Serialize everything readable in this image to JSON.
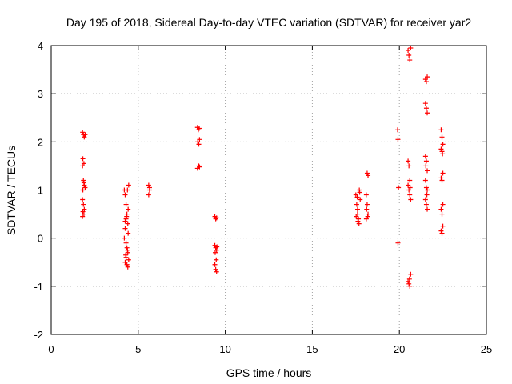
{
  "chart_data": {
    "type": "scatter",
    "title": "Day 195 of 2018, Sidereal Day-to-day VTEC variation (SDTVAR) for receiver yar2",
    "xlabel": "GPS time / hours",
    "ylabel": "SDTVAR / TECUs",
    "xlim": [
      0,
      25
    ],
    "ylim": [
      -2,
      4
    ],
    "xticks": [
      0,
      5,
      10,
      15,
      20,
      25
    ],
    "yticks": [
      -2,
      -1,
      0,
      1,
      2,
      3,
      4
    ],
    "grid": true,
    "marker": "plus",
    "color": "#ff0000",
    "series": [
      {
        "name": "SDTVAR",
        "points": [
          [
            1.8,
            2.2
          ],
          [
            1.85,
            2.15
          ],
          [
            1.9,
            2.1
          ],
          [
            1.95,
            2.15
          ],
          [
            1.82,
            1.65
          ],
          [
            1.88,
            1.55
          ],
          [
            1.8,
            1.5
          ],
          [
            1.85,
            1.2
          ],
          [
            1.9,
            1.1
          ],
          [
            1.82,
            1.0
          ],
          [
            1.88,
            1.15
          ],
          [
            1.95,
            1.05
          ],
          [
            1.8,
            0.8
          ],
          [
            1.85,
            0.7
          ],
          [
            1.9,
            0.6
          ],
          [
            1.82,
            0.55
          ],
          [
            1.88,
            0.5
          ],
          [
            1.8,
            0.45
          ],
          [
            4.2,
            1.0
          ],
          [
            4.25,
            0.9
          ],
          [
            4.3,
            0.7
          ],
          [
            4.35,
            0.5
          ],
          [
            4.4,
            0.3
          ],
          [
            4.45,
            1.1
          ],
          [
            4.38,
            1.0
          ],
          [
            4.42,
            0.6
          ],
          [
            4.3,
            0.4
          ],
          [
            4.25,
            0.2
          ],
          [
            4.2,
            0.0
          ],
          [
            4.3,
            -0.1
          ],
          [
            4.35,
            -0.2
          ],
          [
            4.4,
            -0.3
          ],
          [
            4.3,
            -0.4
          ],
          [
            4.25,
            -0.5
          ],
          [
            4.35,
            -0.55
          ],
          [
            4.4,
            -0.6
          ],
          [
            4.45,
            -0.45
          ],
          [
            4.28,
            -0.35
          ],
          [
            4.38,
            -0.25
          ],
          [
            4.42,
            0.1
          ],
          [
            4.33,
            0.45
          ],
          [
            4.25,
            0.35
          ],
          [
            5.6,
            1.1
          ],
          [
            5.65,
            1.0
          ],
          [
            5.6,
            0.9
          ],
          [
            5.65,
            1.05
          ],
          [
            8.4,
            2.3
          ],
          [
            8.45,
            2.25
          ],
          [
            8.5,
            2.28
          ],
          [
            8.42,
            2.0
          ],
          [
            8.48,
            1.95
          ],
          [
            8.52,
            2.05
          ],
          [
            8.4,
            1.45
          ],
          [
            8.48,
            1.5
          ],
          [
            8.52,
            1.48
          ],
          [
            9.4,
            0.45
          ],
          [
            9.45,
            0.4
          ],
          [
            9.5,
            0.42
          ],
          [
            9.4,
            -0.15
          ],
          [
            9.45,
            -0.2
          ],
          [
            9.5,
            -0.25
          ],
          [
            9.42,
            -0.3
          ],
          [
            9.48,
            -0.45
          ],
          [
            9.4,
            -0.55
          ],
          [
            9.45,
            -0.65
          ],
          [
            9.5,
            -0.7
          ],
          [
            9.52,
            -0.18
          ],
          [
            17.5,
            0.9
          ],
          [
            17.55,
            0.7
          ],
          [
            17.6,
            0.5
          ],
          [
            17.65,
            0.4
          ],
          [
            17.7,
            1.0
          ],
          [
            17.75,
            0.8
          ],
          [
            17.6,
            0.6
          ],
          [
            17.52,
            0.45
          ],
          [
            17.68,
            0.3
          ],
          [
            17.72,
            0.95
          ],
          [
            17.58,
            0.85
          ],
          [
            17.62,
            0.35
          ],
          [
            18.1,
            0.9
          ],
          [
            18.15,
            0.7
          ],
          [
            18.2,
            0.5
          ],
          [
            18.1,
            0.4
          ],
          [
            18.15,
            1.35
          ],
          [
            18.2,
            1.3
          ],
          [
            18.12,
            0.6
          ],
          [
            18.18,
            0.45
          ],
          [
            19.9,
            2.25
          ],
          [
            19.92,
            2.05
          ],
          [
            19.95,
            1.05
          ],
          [
            19.92,
            -0.1
          ],
          [
            20.5,
            3.9
          ],
          [
            20.55,
            3.8
          ],
          [
            20.6,
            3.7
          ],
          [
            20.65,
            3.95
          ],
          [
            20.5,
            1.6
          ],
          [
            20.55,
            1.5
          ],
          [
            20.6,
            1.2
          ],
          [
            20.5,
            1.1
          ],
          [
            20.55,
            1.0
          ],
          [
            20.6,
            0.9
          ],
          [
            20.65,
            0.8
          ],
          [
            20.5,
            -0.9
          ],
          [
            20.55,
            -0.95
          ],
          [
            20.6,
            -1.0
          ],
          [
            20.65,
            -0.75
          ],
          [
            20.58,
            -0.85
          ],
          [
            20.62,
            1.05
          ],
          [
            21.5,
            3.3
          ],
          [
            21.55,
            3.25
          ],
          [
            21.6,
            3.35
          ],
          [
            21.5,
            2.8
          ],
          [
            21.55,
            2.7
          ],
          [
            21.6,
            2.6
          ],
          [
            21.5,
            1.7
          ],
          [
            21.55,
            1.6
          ],
          [
            21.6,
            1.4
          ],
          [
            21.5,
            1.2
          ],
          [
            21.55,
            1.05
          ],
          [
            21.6,
            1.0
          ],
          [
            21.5,
            0.8
          ],
          [
            21.55,
            0.7
          ],
          [
            21.6,
            0.6
          ],
          [
            21.52,
            1.5
          ],
          [
            21.58,
            0.9
          ],
          [
            22.4,
            2.25
          ],
          [
            22.45,
            2.1
          ],
          [
            22.5,
            1.95
          ],
          [
            22.4,
            1.85
          ],
          [
            22.45,
            1.8
          ],
          [
            22.5,
            1.35
          ],
          [
            22.4,
            1.25
          ],
          [
            22.45,
            1.2
          ],
          [
            22.5,
            0.7
          ],
          [
            22.4,
            0.6
          ],
          [
            22.45,
            0.5
          ],
          [
            22.5,
            0.25
          ],
          [
            22.4,
            0.15
          ],
          [
            22.45,
            0.1
          ],
          [
            22.48,
            1.75
          ]
        ]
      }
    ]
  }
}
